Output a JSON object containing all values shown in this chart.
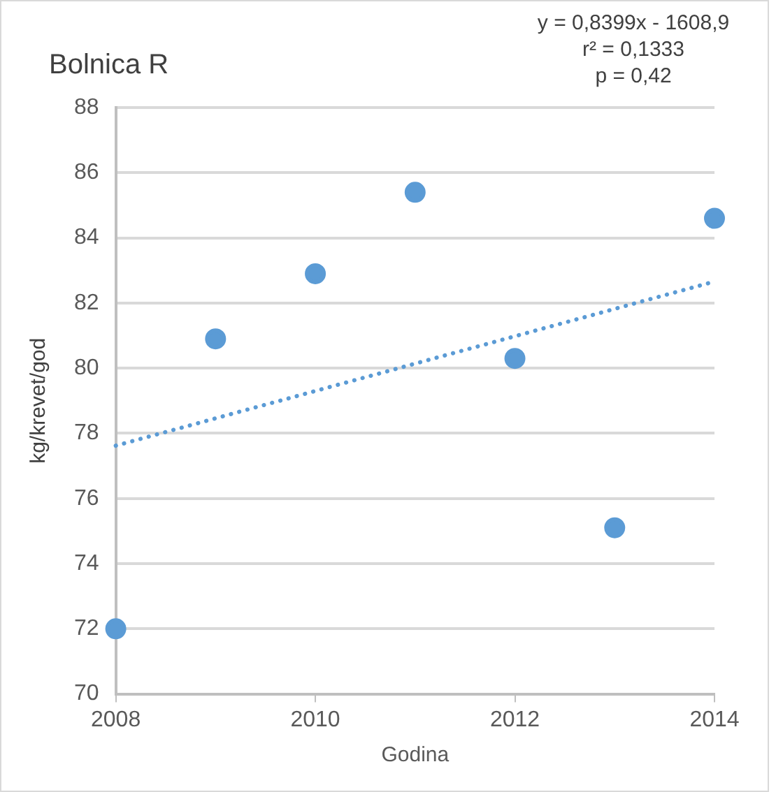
{
  "chart_data": {
    "type": "scatter",
    "title": "Bolnica R",
    "xlabel": "Godina",
    "ylabel": "kg/krevet/god",
    "annotations": [
      "y = 0,8399x - 1608,9",
      "r² = 0,1333",
      "p = 0,42"
    ],
    "series": [
      {
        "color": "#5b9bd5",
        "marker": "circle",
        "x": [
          2008,
          2009,
          2010,
          2011,
          2012,
          2013,
          2014
        ],
        "values": [
          72.0,
          80.9,
          82.9,
          85.4,
          80.3,
          75.1,
          84.6
        ]
      },
      {
        "type": "line",
        "color": "#5b9bd5",
        "marker": "none",
        "line_style": "dotted",
        "x": [
          2008,
          2014
        ],
        "values": [
          77.62,
          82.66
        ]
      }
    ],
    "xlim": [
      2008,
      2014
    ],
    "xticks": [
      2008,
      2010,
      2012,
      2014
    ],
    "ylim": [
      70,
      88
    ],
    "yticks": [
      70,
      72,
      74,
      76,
      78,
      80,
      82,
      84,
      86,
      88
    ],
    "grid": "y",
    "legend": false
  }
}
